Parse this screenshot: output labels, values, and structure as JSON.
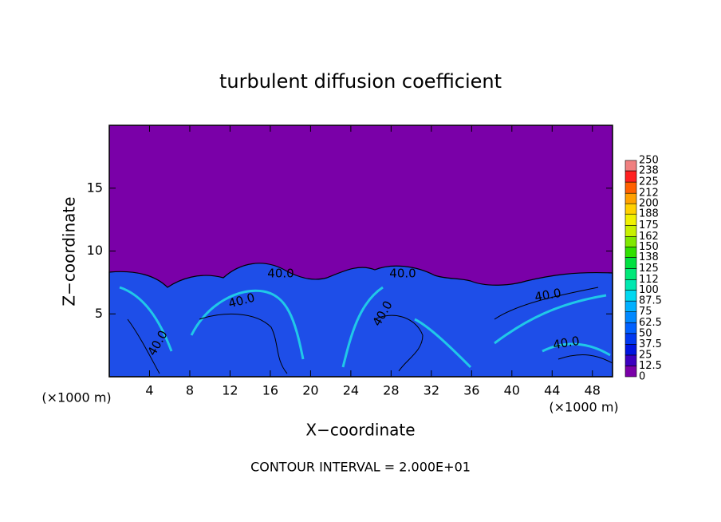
{
  "chart_data": {
    "type": "contour",
    "title": "turbulent diffusion coefficient",
    "x_label": "X−coordinate",
    "y_label": "Z−coordinate",
    "x_unit": "(×1000 m)",
    "y_unit": "(×1000 m)",
    "footer": "CONTOUR INTERVAL = 2.000E+01",
    "xlim": [
      0,
      50
    ],
    "xticks": [
      4,
      8,
      12,
      16,
      20,
      24,
      28,
      32,
      36,
      40,
      44,
      48
    ],
    "ylim": [
      0,
      20
    ],
    "yticks": [
      5,
      10,
      15
    ],
    "colorbar_ticks": [
      0,
      12.5,
      25,
      37.5,
      50,
      62.5,
      75,
      87.5,
      100,
      112,
      125,
      138,
      150,
      162,
      175,
      188,
      200,
      212,
      225,
      238,
      250
    ],
    "colorbar_colors": [
      "#7a00a8",
      "#3c00c0",
      "#0014e0",
      "#0038f0",
      "#0060ff",
      "#0088ff",
      "#00b0ff",
      "#00d8f0",
      "#00e8b0",
      "#00e878",
      "#00e040",
      "#30e000",
      "#80e800",
      "#c8f000",
      "#f0f000",
      "#ffd000",
      "#ffa000",
      "#ff6000",
      "#ff2020",
      "#f08080"
    ],
    "annotations": [
      "40.0",
      "40.0",
      "40.0",
      "40.0",
      "40.0",
      "40.0",
      "40.0"
    ]
  }
}
